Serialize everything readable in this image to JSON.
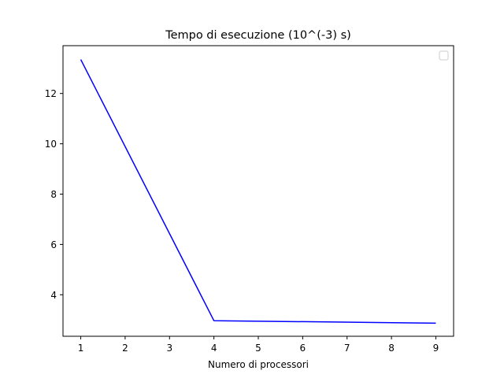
{
  "chart_data": {
    "type": "line",
    "title": "Tempo di esecuzione (10^(-3) s)",
    "xlabel": "Numero di processori",
    "ylabel": "",
    "xlim": [
      0.6,
      9.4
    ],
    "ylim": [
      2.35,
      13.9
    ],
    "xticks": [
      1,
      2,
      3,
      4,
      5,
      6,
      7,
      8,
      9
    ],
    "yticks": [
      4,
      6,
      8,
      10,
      12
    ],
    "grid": false,
    "legend": {
      "placement": "top-right",
      "entries": []
    },
    "series": [
      {
        "color": "#0000ff",
        "x": [
          1,
          4,
          9
        ],
        "y": [
          13.35,
          2.97,
          2.87
        ]
      }
    ]
  }
}
